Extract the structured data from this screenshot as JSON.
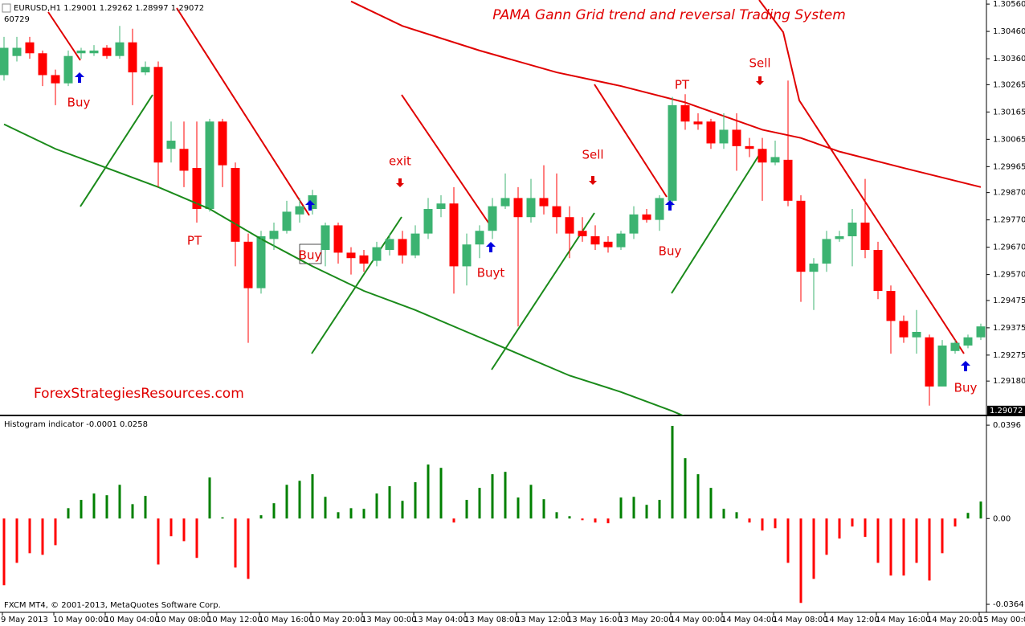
{
  "chart_data": [
    {
      "type": "candlestick",
      "title": "PAMA Gann Grid trend and reversal Trading System",
      "header": "EURUSD,H1 1.29001 1.29262 1.28997 1.29072",
      "header2": "60729",
      "watermark": "ForexStrategiesResources.com",
      "categories": [
        "9 May 2013",
        null,
        null,
        null,
        "10 May 00:00",
        null,
        null,
        null,
        "10 May 04:00",
        null,
        null,
        null,
        "10 May 08:00",
        null,
        null,
        null,
        "10 May 12:00",
        null,
        null,
        null,
        "10 May 16:00",
        null,
        null,
        null,
        "10 May 20:00",
        null,
        null,
        null,
        "13 May 00:00",
        null,
        null,
        null,
        "13 May 04:00",
        null,
        null,
        null,
        "13 May 08:00",
        null,
        null,
        null,
        "13 May 12:00",
        null,
        null,
        null,
        "13 May 16:00",
        null,
        null,
        null,
        "13 May 20:00",
        null,
        null,
        null,
        "14 May 00:00",
        null,
        null,
        null,
        "14 May 04:00",
        null,
        null,
        null,
        "14 May 08:00",
        null,
        null,
        null,
        "14 May 12:00",
        null,
        null,
        null,
        "14 May 16:00",
        null,
        null,
        null,
        "14 May 20:00",
        null,
        null,
        null,
        "15 May 00:00"
      ],
      "open": [
        1.303,
        1.3037,
        1.3042,
        1.3038,
        1.303,
        1.3027,
        1.3038,
        1.3038,
        1.304,
        1.3037,
        1.3042,
        1.3031,
        1.3033,
        1.3003,
        1.3003,
        1.2996,
        1.2981,
        1.3013,
        1.2996,
        1.2969,
        1.2952,
        1.297,
        1.2973,
        1.2979,
        1.2981,
        1.2966,
        1.2975,
        1.2965,
        1.2964,
        1.2962,
        1.2966,
        1.297,
        1.2964,
        1.2972,
        1.2981,
        1.2983,
        1.296,
        1.2968,
        1.2973,
        1.2982,
        1.2985,
        1.2978,
        1.2985,
        1.2982,
        1.2978,
        1.2973,
        1.2971,
        1.2969,
        1.2967,
        1.2972,
        1.2979,
        1.2977,
        1.2984,
        1.3019,
        1.3013,
        1.3013,
        1.3005,
        1.301,
        1.3004,
        1.3003,
        1.2998,
        1.2999,
        1.2984,
        1.2958,
        1.2961,
        1.297,
        1.2971,
        1.2976,
        1.2966,
        1.2951,
        1.294,
        1.2934,
        1.2934,
        1.2916,
        1.2929,
        1.2931,
        1.2934
      ],
      "high": [
        1.3044,
        1.3044,
        1.3044,
        1.3039,
        1.3032,
        1.3039,
        1.304,
        1.3041,
        1.3041,
        1.3048,
        1.3047,
        1.3035,
        1.3035,
        1.3013,
        1.3013,
        1.3013,
        1.3014,
        1.3014,
        1.2998,
        1.2972,
        1.2973,
        1.2976,
        1.2984,
        1.2985,
        1.2988,
        1.2976,
        1.2976,
        1.2967,
        1.2966,
        1.2969,
        1.2972,
        1.2973,
        1.2975,
        1.2985,
        1.2986,
        1.2989,
        1.2972,
        1.2975,
        1.2985,
        1.2994,
        1.2989,
        1.2992,
        1.2997,
        1.2994,
        1.2982,
        1.2978,
        1.2975,
        1.2971,
        1.2973,
        1.2982,
        1.2981,
        1.2986,
        1.3022,
        1.3023,
        1.3016,
        1.3014,
        1.3016,
        1.3016,
        1.3007,
        1.3007,
        1.3006,
        1.3028,
        1.2986,
        1.2963,
        1.2973,
        1.2973,
        1.2981,
        1.2992,
        1.2969,
        1.2953,
        1.2942,
        1.2944,
        1.2935,
        1.2933,
        1.2933,
        1.2935,
        1.2939
      ],
      "low": [
        1.3028,
        1.3035,
        1.3036,
        1.3026,
        1.3019,
        1.3026,
        1.3036,
        1.3037,
        1.3036,
        1.3036,
        1.3019,
        1.303,
        1.2989,
        1.2998,
        1.2989,
        1.2976,
        1.298,
        1.2989,
        1.296,
        1.2932,
        1.295,
        1.2966,
        1.2972,
        1.2976,
        1.2979,
        1.296,
        1.2961,
        1.2957,
        1.2958,
        1.296,
        1.2964,
        1.2961,
        1.2963,
        1.297,
        1.2978,
        1.295,
        1.2953,
        1.2963,
        1.297,
        1.2981,
        1.2938,
        1.2976,
        1.2979,
        1.2972,
        1.2963,
        1.2969,
        1.2966,
        1.2965,
        1.2966,
        1.297,
        1.2976,
        1.2973,
        1.2982,
        1.301,
        1.301,
        1.3003,
        1.3003,
        1.2995,
        1.3,
        1.2984,
        1.2997,
        1.2982,
        1.2947,
        1.2944,
        1.2958,
        1.2969,
        1.296,
        1.2963,
        1.2948,
        1.2928,
        1.2932,
        1.2928,
        1.2909,
        1.2916,
        1.2928,
        1.293,
        1.2933
      ],
      "close": [
        1.304,
        1.304,
        1.3038,
        1.303,
        1.3027,
        1.3037,
        1.3039,
        1.3039,
        1.3037,
        1.3042,
        1.3031,
        1.3033,
        1.2998,
        1.3006,
        1.2995,
        1.2981,
        1.3013,
        1.2997,
        1.2969,
        1.2952,
        1.2971,
        1.2973,
        1.298,
        1.2982,
        1.2986,
        1.2975,
        1.2965,
        1.2963,
        1.2961,
        1.2967,
        1.297,
        1.2964,
        1.2972,
        1.2981,
        1.2983,
        1.296,
        1.2968,
        1.2973,
        1.2982,
        1.2985,
        1.2978,
        1.2985,
        1.2982,
        1.2978,
        1.2972,
        1.2971,
        1.2968,
        1.2967,
        1.2972,
        1.2979,
        1.2977,
        1.2985,
        1.3019,
        1.3013,
        1.3012,
        1.3005,
        1.301,
        1.3004,
        1.3003,
        1.2998,
        1.3,
        1.2984,
        1.2958,
        1.2961,
        1.297,
        1.2971,
        1.2976,
        1.2966,
        1.2951,
        1.294,
        1.2934,
        1.2936,
        1.2916,
        1.2931,
        1.2932,
        1.2934,
        1.2938
      ],
      "up_color": "#3cb371",
      "down_color": "#ff0000",
      "ylim": [
        1.29054,
        1.30575
      ],
      "yticks": [
        {
          "value": 1.3056,
          "label": "1.30560"
        },
        {
          "value": 1.3046,
          "label": "1.30460"
        },
        {
          "value": 1.3036,
          "label": "1.30360"
        },
        1.30265,
        1.30165,
        1.30065,
        1.29965,
        {
          "value": 1.2987,
          "label": "1.29870"
        },
        {
          "value": 1.2977,
          "label": "1.29770"
        },
        {
          "value": 1.2967,
          "label": "1.29670"
        },
        {
          "value": 1.2957,
          "label": "1.29570"
        },
        1.29475,
        1.29375,
        1.29275,
        {
          "value": 1.2918,
          "label": "1.29180"
        }
      ],
      "last_price": 1.29072,
      "overlays": [
        {
          "color": "#e00000",
          "x": [
            27,
            31,
            37,
            43,
            48,
            53,
            59,
            62,
            65,
            70,
            76
          ],
          "values": [
            1.3057,
            1.3048,
            1.3039,
            1.3031,
            1.3026,
            1.302,
            1.301,
            1.3007,
            1.3002,
            1.2996,
            1.2989
          ]
        },
        {
          "color": "#1a8a1a",
          "x": [
            0,
            4,
            8,
            12,
            16,
            20,
            24,
            28,
            32,
            36,
            40,
            44,
            48,
            52,
            53
          ],
          "values": [
            1.3012,
            1.3003,
            1.2996,
            1.2989,
            1.2981,
            1.297,
            1.296,
            1.2951,
            1.2944,
            1.2936,
            1.2928,
            1.292,
            1.2914,
            1.2907,
            1.2905
          ]
        }
      ],
      "annotations": [
        "Buy",
        "PT",
        "Buy",
        "exit",
        "Buyt",
        "Sell",
        "Buy",
        "PT",
        "Sell",
        "Buy"
      ]
    },
    {
      "type": "bar",
      "title": "Histogram indicator -0.0001 0.0258",
      "values": [
        -0.0283,
        -0.0188,
        -0.0147,
        -0.0154,
        -0.0113,
        0.0044,
        0.0079,
        0.0106,
        0.0099,
        0.0143,
        0.0061,
        0.0096,
        -0.0195,
        -0.0075,
        -0.0096,
        -0.0167,
        0.0174,
        0.0005,
        -0.0208,
        -0.0256,
        0.0014,
        0.0065,
        0.0143,
        0.016,
        0.0188,
        0.0092,
        0.0027,
        0.0044,
        0.0041,
        0.0106,
        0.0137,
        0.0075,
        0.0154,
        0.0229,
        0.0215,
        -0.0017,
        0.0079,
        0.013,
        0.0188,
        0.0198,
        0.0089,
        0.0143,
        0.0082,
        0.0027,
        0.001,
        -0.0007,
        -0.0017,
        -0.002,
        0.0089,
        0.0092,
        0.0058,
        0.0079,
        0.0393,
        0.0256,
        0.0188,
        0.013,
        0.0041,
        0.0027,
        -0.0017,
        -0.0051,
        -0.0041,
        -0.0188,
        -0.0358,
        -0.0256,
        -0.0154,
        -0.0085,
        -0.0034,
        -0.0078,
        -0.0188,
        -0.0242,
        -0.0242,
        -0.0188,
        -0.0263,
        -0.0147,
        -0.0034,
        0.0024,
        0.0072
      ],
      "up_color": "#008000",
      "down_color": "#ff0000",
      "ylim": [
        -0.0398,
        0.0427
      ],
      "yticks": [
        0.0396,
        {
          "value": 0,
          "label": "0.00"
        },
        -0.0364
      ]
    }
  ],
  "footer": "FXCM MT4, © 2001-2013, MetaQuotes Software Corp."
}
